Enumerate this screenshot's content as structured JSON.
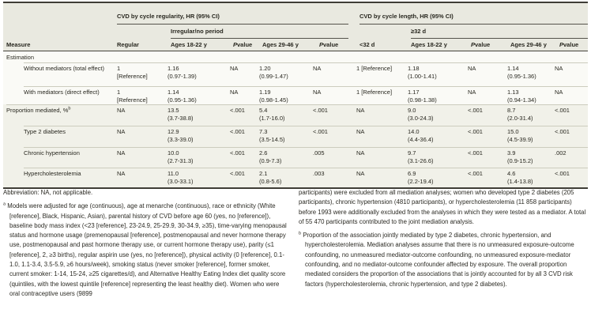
{
  "table": {
    "group_headers": {
      "regularity": "CVD by cycle regularity, HR (95% CI)",
      "length": "CVD by cycle length, HR (95% CI)"
    },
    "sub_headers": {
      "irregular": "Irregular/no period",
      "ge32": "≥32 d"
    },
    "col_headers": {
      "measure": "Measure",
      "regular": "Regular",
      "ages_18_22": "Ages 18-22 y",
      "ages_29_46": "Ages 29-46 y",
      "lt_32": "<32 d",
      "p_italic": "P",
      "p_rest": " value"
    },
    "rows": [
      {
        "label": "Estimation",
        "indent": 0,
        "cells": []
      },
      {
        "label": "Without mediators (total effect)",
        "indent": 1,
        "cells": [
          {
            "v": "1",
            "ci": "[Reference]"
          },
          {
            "v": "1.16",
            "ci": "(0.97-1.39)"
          },
          {
            "v": "NA"
          },
          {
            "v": "1.20",
            "ci": "(0.99-1.47)"
          },
          {
            "v": "NA"
          },
          {
            "v": "1 [Reference]"
          },
          {
            "v": "1.18",
            "ci": "(1.00-1.41)"
          },
          {
            "v": "NA"
          },
          {
            "v": "1.14",
            "ci": "(0.95-1.36)"
          },
          {
            "v": "NA"
          }
        ]
      },
      {
        "label": "With mediators (direct effect)",
        "indent": 1,
        "cells": [
          {
            "v": "1",
            "ci": "[Reference]"
          },
          {
            "v": "1.14",
            "ci": "(0.95-1.36)"
          },
          {
            "v": "NA"
          },
          {
            "v": "1.19",
            "ci": "(0.98-1.45)"
          },
          {
            "v": "NA"
          },
          {
            "v": "1 [Reference]"
          },
          {
            "v": "1.17",
            "ci": "(0.98-1.38)"
          },
          {
            "v": "NA"
          },
          {
            "v": "1.13",
            "ci": "(0.94-1.34)"
          },
          {
            "v": "NA"
          }
        ]
      },
      {
        "label": "Proportion mediated, %",
        "sup": "b",
        "indent": 0,
        "cells": [
          {
            "v": "NA"
          },
          {
            "v": "13.5",
            "ci": "(3.7-38.8)"
          },
          {
            "v": "<.001"
          },
          {
            "v": "5.4",
            "ci": "(1.7-16.0)"
          },
          {
            "v": "<.001"
          },
          {
            "v": "NA"
          },
          {
            "v": "9.0",
            "ci": "(3.0-24.3)"
          },
          {
            "v": "<.001"
          },
          {
            "v": "8.7",
            "ci": "(2.0-31.4)"
          },
          {
            "v": "<.001"
          }
        ]
      },
      {
        "label": "Type 2 diabetes",
        "indent": 1,
        "cells": [
          {
            "v": "NA"
          },
          {
            "v": "12.9",
            "ci": "(3.3-39.0)"
          },
          {
            "v": "<.001"
          },
          {
            "v": "7.3",
            "ci": "(3.5-14.5)"
          },
          {
            "v": "<.001"
          },
          {
            "v": "NA"
          },
          {
            "v": "14.0",
            "ci": "(4.4-36.4)"
          },
          {
            "v": "<.001"
          },
          {
            "v": "15.0",
            "ci": "(4.5-39.9)"
          },
          {
            "v": "<.001"
          }
        ]
      },
      {
        "label": "Chronic hypertension",
        "indent": 1,
        "cells": [
          {
            "v": "NA"
          },
          {
            "v": "10.0",
            "ci": "(2.7-31.3)"
          },
          {
            "v": "<.001"
          },
          {
            "v": "2.6",
            "ci": "(0.9-7.3)"
          },
          {
            "v": ".005"
          },
          {
            "v": "NA"
          },
          {
            "v": "9.7",
            "ci": "(3.1-26.6)"
          },
          {
            "v": "<.001"
          },
          {
            "v": "3.9",
            "ci": "(0.9-15.2)"
          },
          {
            "v": ".002"
          }
        ]
      },
      {
        "label": "Hypercholesterolemia",
        "indent": 1,
        "cells": [
          {
            "v": "NA"
          },
          {
            "v": "11.0",
            "ci": "(3.0-33.1)"
          },
          {
            "v": "<.001"
          },
          {
            "v": "2.1",
            "ci": "(0.8-5.6)"
          },
          {
            "v": ".003"
          },
          {
            "v": "NA"
          },
          {
            "v": "6.9",
            "ci": "(2.2-19.4)"
          },
          {
            "v": "<.001"
          },
          {
            "v": "4.6",
            "ci": "(1.4-13.8)"
          },
          {
            "v": "<.001"
          }
        ]
      }
    ]
  },
  "footnotes": {
    "abbrev": "Abbreviation: NA, not applicable.",
    "a_marker": "a",
    "a_text": "Models were adjusted for age (continuous), age at menarche (continuous), race or ethnicity (White [reference], Black, Hispanic, Asian), parental history of CVD before age 60 (yes, no [reference]), baseline body mass index (<23 [reference], 23-24.9, 25-29.9, 30-34.9, ≥35), time-varying menopausal status and hormone usage (premenopausal [reference], postmenopausal and never hormone therapy use, postmenopausal and past hormone therapy use, or current hormone therapy use), parity (≤1 [reference], 2, ≥3 births), regular aspirin use (yes, no [reference]), physical activity (0 [reference], 0.1-1.0, 1.1-3.4, 3.5-5.9, ≥6 hours/week), smoking status (never smoker [reference], former smoker, current smoker: 1-14, 15-24, ≥25 cigarettes/d), and Alternative Healthy Eating Index diet quality score (quintiles, with the lowest quintile [reference] representing the least healthy diet). Women who were oral contraceptive users (9899",
    "a_cont": "participants) were excluded from all mediation analyses; women who developed type 2 diabetes (205 participants), chronic hypertension (4810 participants), or hypercholesterolemia (11 858 participants) before 1993 were additionally excluded from the analyses in which they were tested as a mediator. A total of 55 470 participants contributed to the joint mediation analysis.",
    "b_marker": "b",
    "b_text": "Proportion of the association jointly mediated by type 2 diabetes, chronic hypertension, and hypercholesterolemia. Mediation analyses assume that there is no unmeasured exposure-outcome confounding, no unmeasured mediator-outcome confounding, no unmeasured exposure-mediator confounding, and no mediator-outcome confounder affected by exposure. The overall proportion mediated considers the proportion of the associations that is jointly accounted for by all 3 CVD risk factors (hypercholesterolemia, chronic hypertension, and type 2 diabetes)."
  },
  "colors": {
    "header_bg": "#e9e9e0",
    "row_shade": "#f1f1e9",
    "rule_dark": "#3f3d36",
    "rule_light": "#ccccbe"
  }
}
